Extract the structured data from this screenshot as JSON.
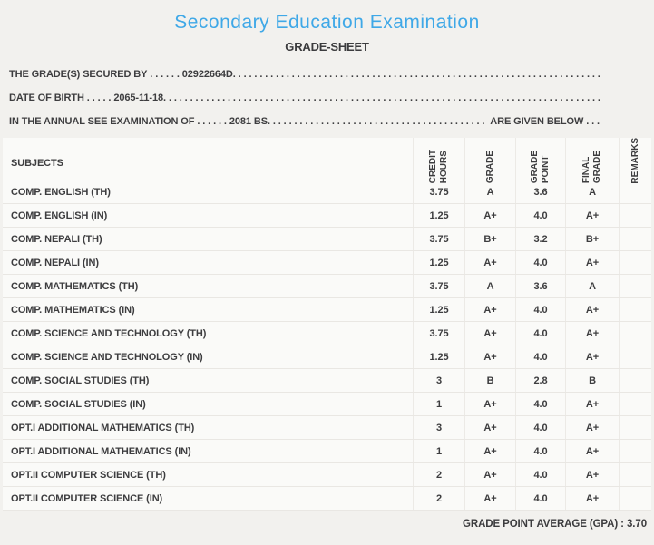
{
  "colors": {
    "page_bg": "#f2f1ee",
    "row_bg": "#fafaf8",
    "separator": "#e9e7e3",
    "accent_blue": "#3fa8e7",
    "text_dark": "#3d3d3f"
  },
  "header": {
    "title": "Secondary Education Examination",
    "subtitle": "GRADE-SHEET"
  },
  "info_lines": [
    {
      "label": "THE GRADE(S) SECURED BY",
      "leader": " . . . . . . ",
      "value": "02922664D",
      "dots": " . . . . . . . . . . . . . . . . . . . . . . . . . . . . . . . . . . . . . . . . . . . . . . . . . . . . . . . . . . . . . . . . . . . . . . . . . . . . . . . . . . . . . . . . . . . .",
      "suffix": ""
    },
    {
      "label": "DATE OF BIRTH",
      "leader": " . . . . . ",
      "value": "2065-11-18",
      "dots": " . . . . . . . . . . . . . . . . . . . . . . . . . . . . . . . . . . . . . . . . . . . . . . . . . . . . . . . . . . . . . . . . . . . . . . . . . . . . . . . . . . . . . . . . . . . .",
      "suffix": ""
    },
    {
      "label": "IN THE ANNUAL SEE EXAMINATION OF",
      "leader": " . . . . . . ",
      "value": "2081 BS",
      "dots": " . . . . . . . . . . . . . . . . . . . . . . . . . . . . . . . . . . . . . . . . . . . . . . . . . . . . . . . . . . . . . . . . . . . . . . . . . . . . . . . . . . . . . . . . . . . .",
      "suffix": " ARE GIVEN BELOW . . ."
    }
  ],
  "table": {
    "columns": [
      "SUBJECTS",
      "CREDIT\nHOURS",
      "GRADE",
      "GRADE\nPOINT",
      "FINAL\nGRADE",
      "REMARKS"
    ],
    "rows": [
      {
        "subject": "COMP. ENGLISH (TH)",
        "credit_hours": "3.75",
        "grade": "A",
        "grade_point": "3.6",
        "final_grade": "A",
        "remarks": ""
      },
      {
        "subject": "COMP. ENGLISH (IN)",
        "credit_hours": "1.25",
        "grade": "A+",
        "grade_point": "4.0",
        "final_grade": "A+",
        "remarks": ""
      },
      {
        "subject": "COMP. NEPALI (TH)",
        "credit_hours": "3.75",
        "grade": "B+",
        "grade_point": "3.2",
        "final_grade": "B+",
        "remarks": ""
      },
      {
        "subject": "COMP. NEPALI (IN)",
        "credit_hours": "1.25",
        "grade": "A+",
        "grade_point": "4.0",
        "final_grade": "A+",
        "remarks": ""
      },
      {
        "subject": "COMP. MATHEMATICS (TH)",
        "credit_hours": "3.75",
        "grade": "A",
        "grade_point": "3.6",
        "final_grade": "A",
        "remarks": ""
      },
      {
        "subject": "COMP. MATHEMATICS (IN)",
        "credit_hours": "1.25",
        "grade": "A+",
        "grade_point": "4.0",
        "final_grade": "A+",
        "remarks": ""
      },
      {
        "subject": "COMP. SCIENCE AND TECHNOLOGY (TH)",
        "credit_hours": "3.75",
        "grade": "A+",
        "grade_point": "4.0",
        "final_grade": "A+",
        "remarks": ""
      },
      {
        "subject": "COMP. SCIENCE AND TECHNOLOGY (IN)",
        "credit_hours": "1.25",
        "grade": "A+",
        "grade_point": "4.0",
        "final_grade": "A+",
        "remarks": ""
      },
      {
        "subject": "COMP. SOCIAL STUDIES (TH)",
        "credit_hours": "3",
        "grade": "B",
        "grade_point": "2.8",
        "final_grade": "B",
        "remarks": ""
      },
      {
        "subject": "COMP. SOCIAL STUDIES (IN)",
        "credit_hours": "1",
        "grade": "A+",
        "grade_point": "4.0",
        "final_grade": "A+",
        "remarks": ""
      },
      {
        "subject": "OPT.I ADDITIONAL MATHEMATICS (TH)",
        "credit_hours": "3",
        "grade": "A+",
        "grade_point": "4.0",
        "final_grade": "A+",
        "remarks": ""
      },
      {
        "subject": "OPT.I ADDITIONAL MATHEMATICS (IN)",
        "credit_hours": "1",
        "grade": "A+",
        "grade_point": "4.0",
        "final_grade": "A+",
        "remarks": ""
      },
      {
        "subject": "OPT.II COMPUTER SCIENCE (TH)",
        "credit_hours": "2",
        "grade": "A+",
        "grade_point": "4.0",
        "final_grade": "A+",
        "remarks": ""
      },
      {
        "subject": "OPT.II COMPUTER SCIENCE (IN)",
        "credit_hours": "2",
        "grade": "A+",
        "grade_point": "4.0",
        "final_grade": "A+",
        "remarks": ""
      }
    ]
  },
  "footer": {
    "gpa_text": "GRADE POINT AVERAGE (GPA) : 3.70"
  }
}
